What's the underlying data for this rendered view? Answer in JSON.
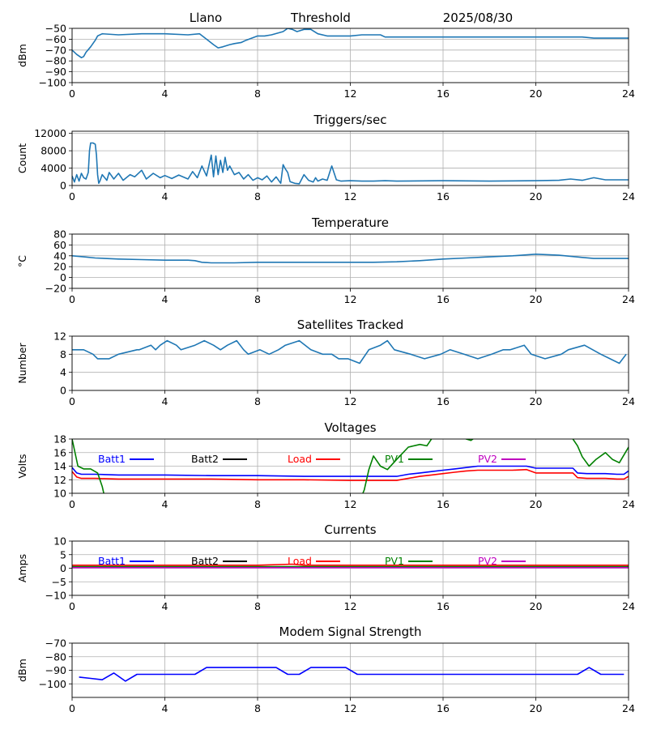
{
  "header": {
    "station": "Llano",
    "mode": "Threshold",
    "date": "2025/08/30"
  },
  "colors": {
    "default": "#1f77b4",
    "batt1": "#0000ff",
    "batt2": "#000000",
    "load": "#ff0000",
    "pv1": "#008000",
    "pv2": "#bf00bf",
    "grid": "#b0b0b0"
  },
  "chart_data": [
    {
      "type": "line",
      "title": "",
      "ylabel": "dBm",
      "xlim": [
        0,
        24
      ],
      "xticks": [
        0,
        4,
        8,
        12,
        16,
        20,
        24
      ],
      "ylim": [
        -100,
        -50
      ],
      "yticks": [
        -100,
        -90,
        -80,
        -70,
        -60,
        -50
      ],
      "grid": true,
      "series": [
        {
          "color": "#1f77b4",
          "x": [
            0,
            0.2,
            0.4,
            0.5,
            0.6,
            0.8,
            1.0,
            1.1,
            1.3,
            2,
            3,
            4,
            5,
            5.5,
            5.8,
            6.1,
            6.3,
            6.5,
            6.8,
            7,
            7.3,
            7.5,
            8,
            8.3,
            8.6,
            9.1,
            9.3,
            9.5,
            9.7,
            10,
            10.3,
            10.6,
            11,
            12,
            12.5,
            13.3,
            13.5,
            14,
            16,
            18,
            20,
            21,
            22,
            22.5,
            24
          ],
          "y": [
            -70,
            -74,
            -77,
            -76,
            -72,
            -67,
            -61,
            -57,
            -55,
            -56,
            -55,
            -55,
            -56,
            -55,
            -60,
            -65,
            -68,
            -67,
            -65,
            -64,
            -63,
            -61,
            -57,
            -57,
            -56,
            -53,
            -50,
            -51,
            -53,
            -51,
            -51,
            -55,
            -57,
            -57,
            -56,
            -56,
            -58,
            -58,
            -58,
            -58,
            -58,
            -58,
            -58,
            -59,
            -59
          ]
        }
      ]
    },
    {
      "type": "line",
      "title": "Triggers/sec",
      "ylabel": "Count",
      "xlim": [
        0,
        24
      ],
      "xticks": [
        0,
        4,
        8,
        12,
        16,
        20,
        24
      ],
      "ylim": [
        0,
        12500
      ],
      "yticks": [
        0,
        4000,
        8000,
        12000
      ],
      "grid": true,
      "series": [
        {
          "color": "#1f77b4",
          "x": [
            0,
            0.1,
            0.2,
            0.3,
            0.4,
            0.5,
            0.6,
            0.7,
            0.75,
            0.8,
            0.9,
            1.0,
            1.05,
            1.1,
            1.15,
            1.2,
            1.3,
            1.5,
            1.6,
            1.8,
            2,
            2.2,
            2.5,
            2.7,
            3,
            3.2,
            3.5,
            3.8,
            4,
            4.3,
            4.6,
            5,
            5.2,
            5.4,
            5.6,
            5.8,
            6,
            6.1,
            6.2,
            6.3,
            6.4,
            6.5,
            6.6,
            6.7,
            6.8,
            7,
            7.2,
            7.4,
            7.6,
            7.8,
            8,
            8.2,
            8.4,
            8.6,
            8.8,
            9,
            9.1,
            9.2,
            9.3,
            9.4,
            9.5,
            9.6,
            9.8,
            10,
            10.2,
            10.4,
            10.5,
            10.6,
            10.8,
            11,
            11.2,
            11.4,
            11.6,
            12,
            12.5,
            13,
            13.5,
            14,
            16,
            18,
            20,
            21,
            21.5,
            22,
            22.5,
            23,
            24
          ],
          "y": [
            2200,
            800,
            2500,
            1000,
            2800,
            1800,
            1500,
            3000,
            8000,
            9800,
            9800,
            9500,
            7000,
            2500,
            500,
            1000,
            2500,
            1200,
            3000,
            1500,
            2800,
            1200,
            2500,
            2000,
            3500,
            1500,
            2800,
            1800,
            2300,
            1600,
            2400,
            1500,
            3200,
            1800,
            4500,
            2200,
            7000,
            2000,
            6800,
            2500,
            5800,
            3000,
            6500,
            3500,
            4500,
            2500,
            3000,
            1500,
            2500,
            1200,
            1800,
            1300,
            2200,
            800,
            2000,
            500,
            4800,
            3800,
            3000,
            900,
            700,
            500,
            400,
            2500,
            1200,
            800,
            1800,
            1000,
            1500,
            1200,
            4500,
            1300,
            1000,
            1100,
            1000,
            1000,
            1100,
            1000,
            1100,
            1000,
            1100,
            1200,
            1500,
            1200,
            1800,
            1300,
            1300
          ]
        }
      ]
    },
    {
      "type": "line",
      "title": "Temperature",
      "ylabel": "°C",
      "xlim": [
        0,
        24
      ],
      "xticks": [
        0,
        4,
        8,
        12,
        16,
        20,
        24
      ],
      "ylim": [
        -20,
        80
      ],
      "yticks": [
        -20,
        0,
        20,
        40,
        60,
        80
      ],
      "grid": true,
      "series": [
        {
          "color": "#1f77b4",
          "x": [
            0,
            0.5,
            1,
            2,
            3,
            4,
            5,
            5.3,
            5.6,
            6,
            7,
            8,
            9,
            10,
            11,
            12,
            13,
            14,
            15,
            16,
            17,
            18,
            19,
            20,
            21,
            22,
            22.5,
            24
          ],
          "y": [
            40,
            38,
            36,
            34,
            33,
            32,
            32,
            31,
            28,
            27,
            27,
            28,
            28,
            28,
            28,
            28,
            28,
            29,
            31,
            34,
            36,
            38,
            40,
            43,
            41,
            37,
            35,
            35
          ]
        }
      ]
    },
    {
      "type": "line",
      "title": "Satellites Tracked",
      "ylabel": "Number",
      "xlim": [
        0,
        24
      ],
      "xticks": [
        0,
        4,
        8,
        12,
        16,
        20,
        24
      ],
      "ylim": [
        0,
        12
      ],
      "yticks": [
        0,
        4,
        8,
        12
      ],
      "grid": true,
      "series": [
        {
          "color": "#1f77b4",
          "x": [
            0,
            0.5,
            0.9,
            1.1,
            1.6,
            2,
            2.8,
            2.9,
            3.4,
            3.6,
            3.8,
            4.1,
            4.5,
            4.7,
            5.3,
            5.7,
            6.1,
            6.4,
            6.7,
            7.1,
            7.4,
            7.6,
            8.1,
            8.5,
            8.9,
            9.2,
            9.8,
            10.3,
            10.8,
            11.2,
            11.5,
            11.9,
            12.4,
            12.8,
            13.3,
            13.6,
            13.9,
            14.6,
            15.2,
            15.9,
            16.3,
            16.9,
            17.5,
            18.1,
            18.6,
            18.9,
            19.5,
            19.8,
            20.4,
            21.1,
            21.4,
            22.1,
            22.8,
            23.2,
            23.6,
            23.9
          ],
          "y": [
            9,
            9,
            8,
            7,
            7,
            8,
            9,
            9,
            10,
            9,
            10,
            11,
            10,
            9,
            10,
            11,
            10,
            9,
            10,
            11,
            9,
            8,
            9,
            8,
            9,
            10,
            11,
            9,
            8,
            8,
            7,
            7,
            6,
            9,
            10,
            11,
            9,
            8,
            7,
            8,
            9,
            8,
            7,
            8,
            9,
            9,
            10,
            8,
            7,
            8,
            9,
            10,
            8,
            7,
            6,
            8
          ]
        }
      ]
    },
    {
      "type": "line",
      "title": "Voltages",
      "ylabel": "Volts",
      "xlim": [
        0,
        24
      ],
      "xticks": [
        0,
        4,
        8,
        12,
        16,
        20,
        24
      ],
      "ylim": [
        10,
        18
      ],
      "yticks": [
        10,
        12,
        14,
        16,
        18
      ],
      "grid": true,
      "legend": "top",
      "series": [
        {
          "name": "Batt1",
          "color": "#0000ff",
          "x": [
            0,
            0.2,
            0.4,
            1,
            2,
            4,
            6,
            8,
            10,
            12,
            13,
            14,
            14.5,
            15,
            15.5,
            16,
            16.5,
            17,
            17.5,
            18,
            19,
            19.6,
            20,
            21,
            21.6,
            21.8,
            22.2,
            23,
            23.5,
            23.8,
            24
          ],
          "y": [
            13.8,
            13,
            12.8,
            12.8,
            12.7,
            12.7,
            12.6,
            12.6,
            12.5,
            12.5,
            12.5,
            12.5,
            12.8,
            13,
            13.2,
            13.4,
            13.6,
            13.8,
            14,
            14,
            14,
            14,
            13.7,
            13.7,
            13.7,
            13,
            12.9,
            12.9,
            12.8,
            12.8,
            13.3
          ]
        },
        {
          "name": "Batt2",
          "color": "#000000",
          "x": [],
          "y": []
        },
        {
          "name": "Load",
          "color": "#ff0000",
          "x": [
            0,
            0.2,
            0.4,
            1,
            2,
            4,
            6,
            8,
            10,
            12,
            13,
            14,
            14.5,
            15,
            15.5,
            16,
            16.5,
            17,
            17.5,
            18,
            19,
            19.6,
            20,
            21,
            21.6,
            21.8,
            22.2,
            23,
            23.5,
            23.8,
            24
          ],
          "y": [
            13.2,
            12.4,
            12.2,
            12.2,
            12.1,
            12.1,
            12.1,
            12,
            12,
            11.9,
            11.9,
            11.9,
            12.2,
            12.5,
            12.7,
            12.9,
            13.1,
            13.3,
            13.4,
            13.4,
            13.4,
            13.5,
            13,
            13,
            13,
            12.3,
            12.2,
            12.2,
            12.1,
            12.1,
            12.5
          ]
        },
        {
          "name": "PV1",
          "color": "#008000",
          "x": [
            0,
            0.25,
            0.5,
            0.8,
            1.1,
            1.3,
            1.5,
            12.3,
            12.6,
            12.8,
            13,
            13.3,
            13.6,
            14,
            14.5,
            15,
            15.3,
            15.6,
            16,
            16.5,
            17,
            17.2,
            17.5,
            18,
            20,
            21,
            21.5,
            21.8,
            22,
            22.3,
            22.6,
            23,
            23.3,
            23.6,
            24
          ],
          "y": [
            18,
            14,
            13.6,
            13.6,
            13,
            11,
            8,
            8,
            10.5,
            13.5,
            15.5,
            14,
            13.5,
            15,
            16.8,
            17.2,
            17,
            18.5,
            20,
            19,
            18,
            17.8,
            18.5,
            19,
            19,
            19,
            18.5,
            17,
            15.4,
            14,
            15,
            16,
            15,
            14.5,
            16.8
          ]
        },
        {
          "name": "PV2",
          "color": "#bf00bf",
          "x": [],
          "y": []
        }
      ]
    },
    {
      "type": "line",
      "title": "Currents",
      "ylabel": "Amps",
      "xlim": [
        0,
        24
      ],
      "xticks": [
        0,
        4,
        8,
        12,
        16,
        20,
        24
      ],
      "ylim": [
        -10,
        10
      ],
      "yticks": [
        -10,
        -5,
        0,
        5,
        10
      ],
      "grid": true,
      "legend": "top",
      "series": [
        {
          "name": "Batt1",
          "color": "#0000ff",
          "x": [
            0,
            24
          ],
          "y": [
            0.3,
            0.3
          ]
        },
        {
          "name": "Batt2",
          "color": "#000000",
          "x": [],
          "y": []
        },
        {
          "name": "Load",
          "color": "#ff0000",
          "x": [
            0,
            4,
            8,
            9.5,
            10,
            12,
            16,
            20,
            24
          ],
          "y": [
            1.1,
            1.1,
            1.1,
            1.5,
            1.1,
            1.1,
            1.1,
            1.1,
            1.1
          ]
        },
        {
          "name": "PV1",
          "color": "#008000",
          "x": [
            0,
            24
          ],
          "y": [
            0.6,
            0.6
          ]
        },
        {
          "name": "PV2",
          "color": "#bf00bf",
          "x": [
            0,
            24
          ],
          "y": [
            0.2,
            0.2
          ]
        }
      ]
    },
    {
      "type": "line",
      "title": "Modem Signal Strength",
      "ylabel": "dBm",
      "xlim": [
        0,
        24
      ],
      "xticks": [
        0,
        4,
        8,
        12,
        16,
        20,
        24
      ],
      "ylim": [
        -110,
        -70
      ],
      "yticks": [
        -100,
        -90,
        -80,
        -70
      ],
      "grid": true,
      "series": [
        {
          "color": "#0000ff",
          "x": [
            0.3,
            0.8,
            1.3,
            1.8,
            2.3,
            2.8,
            3.3,
            3.8,
            4.3,
            4.8,
            5.3,
            5.8,
            6.3,
            6.8,
            7.3,
            7.8,
            8.3,
            8.8,
            9.3,
            9.8,
            10.3,
            10.8,
            11.3,
            11.8,
            12.3,
            12.8,
            13.3,
            13.8,
            14.3,
            14.8,
            15.3,
            15.8,
            16.3,
            16.8,
            17.3,
            17.8,
            18.3,
            18.8,
            19.3,
            19.8,
            20.3,
            20.8,
            21.3,
            21.8,
            22.3,
            22.8,
            23.3,
            23.8
          ],
          "y": [
            -95,
            -96,
            -97,
            -92,
            -98,
            -93,
            -93,
            -93,
            -93,
            -93,
            -93,
            -88,
            -88,
            -88,
            -88,
            -88,
            -88,
            -88,
            -93,
            -93,
            -88,
            -88,
            -88,
            -88,
            -93,
            -93,
            -93,
            -93,
            -93,
            -93,
            -93,
            -93,
            -93,
            -93,
            -93,
            -93,
            -93,
            -93,
            -93,
            -93,
            -93,
            -93,
            -93,
            -93,
            -88,
            -93,
            -93,
            -93
          ]
        }
      ]
    }
  ]
}
